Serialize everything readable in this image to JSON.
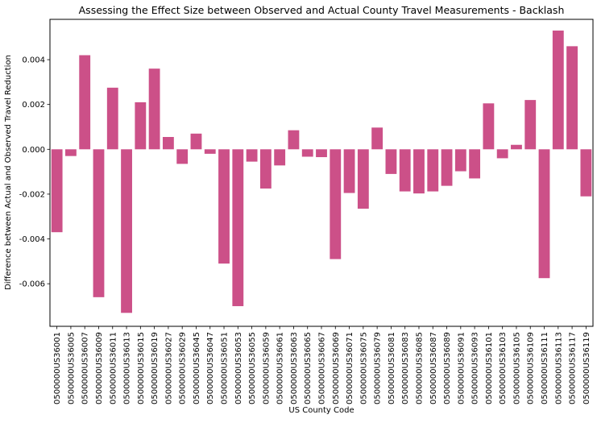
{
  "chart_data": {
    "type": "bar",
    "title": "Assessing the Effect Size between Observed and Actual County Travel Measurements - Backlash",
    "xlabel": "US County Code",
    "ylabel": "Difference between Actual and Observed Travel Reduction",
    "ylim": [
      -0.0079,
      0.0058
    ],
    "yticks": [
      -0.006,
      -0.004,
      -0.002,
      0.0,
      0.002,
      0.004
    ],
    "ytick_labels": [
      "-0.006",
      "-0.004",
      "-0.002",
      "0.000",
      "0.002",
      "0.004"
    ],
    "grid": false,
    "bar_color": "#cc5088",
    "categories": [
      "0500000US36001",
      "0500000US36005",
      "0500000US36007",
      "0500000US36009",
      "0500000US36011",
      "0500000US36013",
      "0500000US36015",
      "0500000US36019",
      "0500000US36027",
      "0500000US36029",
      "0500000US36045",
      "0500000US36047",
      "0500000US36051",
      "0500000US36053",
      "0500000US36055",
      "0500000US36059",
      "0500000US36061",
      "0500000US36063",
      "0500000US36065",
      "0500000US36067",
      "0500000US36069",
      "0500000US36071",
      "0500000US36075",
      "0500000US36079",
      "0500000US36081",
      "0500000US36083",
      "0500000US36085",
      "0500000US36087",
      "0500000US36089",
      "0500000US36091",
      "0500000US36093",
      "0500000US36101",
      "0500000US36103",
      "0500000US36105",
      "0500000US36109",
      "0500000US36111",
      "0500000US36113",
      "0500000US36117",
      "0500000US36119"
    ],
    "values": [
      -0.0037,
      -0.0003,
      0.0042,
      -0.0066,
      0.00275,
      -0.0073,
      0.0021,
      0.0036,
      0.00055,
      -0.00065,
      0.0007,
      -0.0002,
      -0.0051,
      -0.007,
      -0.00055,
      -0.00175,
      -0.00072,
      0.00085,
      -0.00033,
      -0.00035,
      -0.0049,
      -0.00195,
      -0.00265,
      0.00097,
      -0.0011,
      -0.00188,
      -0.00197,
      -0.00188,
      -0.00163,
      -0.00098,
      -0.0013,
      0.00205,
      -0.0004,
      0.0002,
      0.0022,
      -0.00575,
      0.0053,
      0.0046,
      -0.0021
    ]
  }
}
